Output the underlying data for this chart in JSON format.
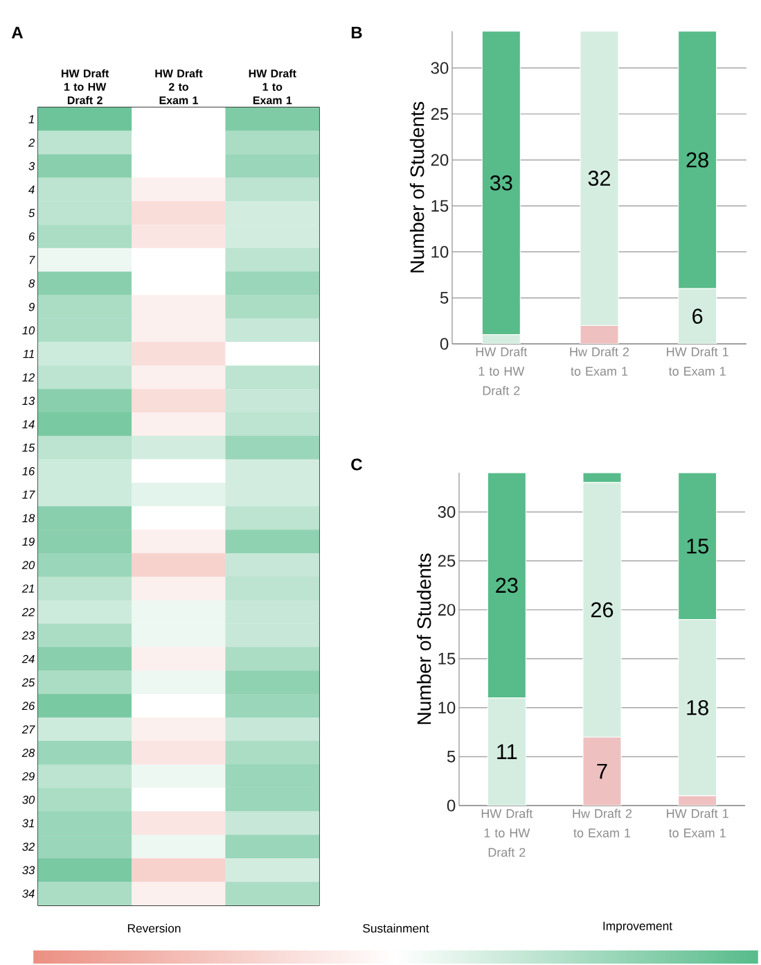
{
  "chart_data": [
    {
      "type": "heatmap",
      "title": "A",
      "categories": [
        "HW Draft 1 to HW Draft 2",
        "HW Draft 2 to Exam 1",
        "HW Draft 1 to Exam 1"
      ],
      "y_categories": [
        "1",
        "2",
        "3",
        "4",
        "5",
        "6",
        "7",
        "8",
        "9",
        "10",
        "11",
        "12",
        "13",
        "14",
        "15",
        "16",
        "17",
        "18",
        "19",
        "20",
        "21",
        "22",
        "23",
        "24",
        "25",
        "26",
        "27",
        "28",
        "29",
        "30",
        "31",
        "32",
        "33",
        "34"
      ],
      "cells": [
        [
          2.6,
          0,
          2.3
        ],
        [
          1.2,
          0,
          1.5
        ],
        [
          2.1,
          0,
          1.8
        ],
        [
          1.2,
          -0.4,
          1.2
        ],
        [
          1.2,
          -0.9,
          0.8
        ],
        [
          1.5,
          -0.7,
          0.8
        ],
        [
          0.3,
          0,
          1.2
        ],
        [
          2.1,
          0,
          1.8
        ],
        [
          1.5,
          -0.4,
          1.5
        ],
        [
          1.5,
          -0.4,
          1.0
        ],
        [
          0.9,
          -0.9,
          0
        ],
        [
          1.2,
          -0.4,
          1.2
        ],
        [
          2.1,
          -0.9,
          1.0
        ],
        [
          2.4,
          -0.4,
          1.2
        ],
        [
          1.2,
          0.8,
          1.8
        ],
        [
          0.9,
          0,
          0.8
        ],
        [
          0.9,
          0.5,
          0.8
        ],
        [
          2.1,
          0,
          1.2
        ],
        [
          2.1,
          -0.4,
          2.0
        ],
        [
          1.8,
          -1.2,
          1.0
        ],
        [
          1.2,
          -0.4,
          1.2
        ],
        [
          0.9,
          0.3,
          1.0
        ],
        [
          1.5,
          0.3,
          1.0
        ],
        [
          2.1,
          -0.4,
          1.5
        ],
        [
          1.5,
          0.3,
          2.0
        ],
        [
          2.4,
          0,
          1.8
        ],
        [
          0.9,
          -0.4,
          1.0
        ],
        [
          1.8,
          -0.7,
          1.5
        ],
        [
          1.2,
          0.3,
          1.8
        ],
        [
          1.5,
          0,
          1.8
        ],
        [
          1.8,
          -0.7,
          1.0
        ],
        [
          1.8,
          0.3,
          1.8
        ],
        [
          2.4,
          -1.2,
          0.8
        ],
        [
          1.5,
          -0.4,
          1.5
        ]
      ],
      "clim": [
        -3,
        3
      ],
      "cticks": [
        {
          "value": -2,
          "label": "Reversion"
        },
        {
          "value": 0,
          "label": "Sustainment"
        },
        {
          "value": 2,
          "label": "Improvement"
        }
      ]
    },
    {
      "type": "bar",
      "title": "B",
      "categories": [
        "HW Draft 1 to HW Draft 2",
        "Hw Draft 2 to Exam 1",
        "HW Draft 1 to Exam 1"
      ],
      "ylabel": "Number of Students",
      "stacked": true,
      "ylim": [
        0,
        34
      ],
      "yticks": [
        0,
        5,
        10,
        15,
        20,
        25,
        30
      ],
      "grid": "y",
      "series": [
        {
          "color": "#efc0c0",
          "values": [
            0,
            2,
            0
          ],
          "value_labels": [
            null,
            null,
            null
          ]
        },
        {
          "color": "#d4ede0",
          "values": [
            1,
            32,
            6
          ],
          "value_labels": [
            null,
            "32",
            "6"
          ]
        },
        {
          "color": "#57bb8a",
          "values": [
            33,
            0,
            28
          ],
          "value_labels": [
            "33",
            null,
            "28"
          ]
        }
      ]
    },
    {
      "type": "bar",
      "title": "C",
      "categories": [
        "HW Draft 1 to HW Draft 2",
        "Hw Draft 2 to Exam 1",
        "HW Draft 1 to Exam 1"
      ],
      "ylabel": "Number of Students",
      "stacked": true,
      "ylim": [
        0,
        34
      ],
      "yticks": [
        0,
        5,
        10,
        15,
        20,
        25,
        30
      ],
      "grid": "y",
      "series": [
        {
          "color": "#efc0c0",
          "values": [
            0,
            7,
            1
          ],
          "value_labels": [
            null,
            "7",
            null
          ]
        },
        {
          "color": "#d4ede0",
          "values": [
            11,
            26,
            18
          ],
          "value_labels": [
            "11",
            "26",
            "18"
          ]
        },
        {
          "color": "#57bb8a",
          "values": [
            23,
            1,
            15
          ],
          "value_labels": [
            "23",
            null,
            "15"
          ]
        }
      ]
    }
  ]
}
